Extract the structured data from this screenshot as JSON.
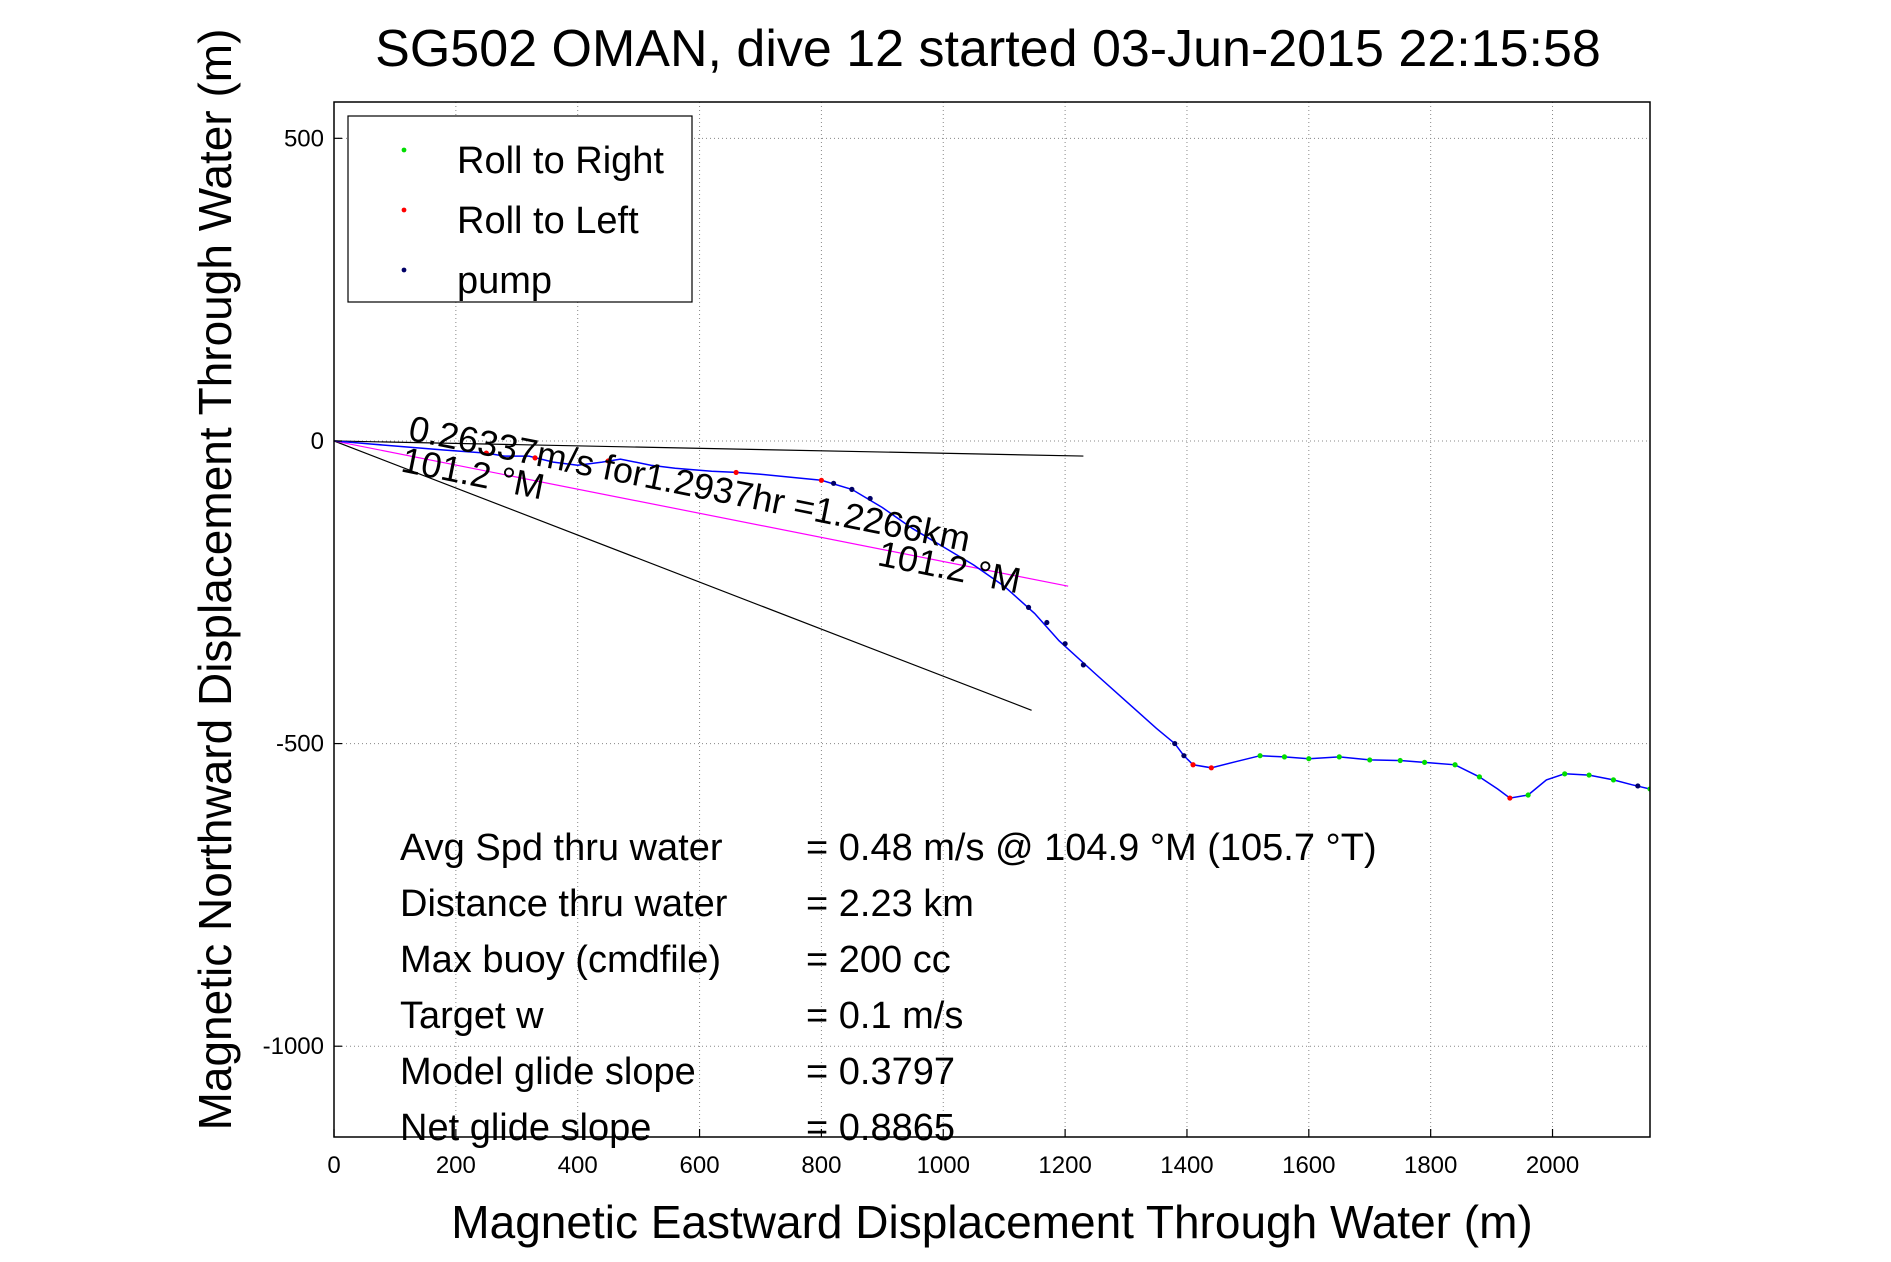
{
  "chart_data": {
    "type": "line",
    "title": "SG502 OMAN, dive 12 started 03-Jun-2015 22:15:58",
    "xlabel": "Magnetic Eastward Displacement Through Water (m)",
    "ylabel": "Magnetic Northward Displacement Through Water (m)",
    "xlim": [
      0,
      2160
    ],
    "ylim": [
      -1150,
      560
    ],
    "xticks": [
      0,
      200,
      400,
      600,
      800,
      1000,
      1200,
      1400,
      1600,
      1800,
      2000
    ],
    "yticks": [
      500,
      0,
      -500,
      -1000
    ],
    "grid": true,
    "legend": {
      "placement": "top-left",
      "entries": [
        {
          "label": "Roll to Right",
          "color": "#00dd00"
        },
        {
          "label": "Roll to Left",
          "color": "#ff0000"
        },
        {
          "label": "pump",
          "color": "#000066"
        }
      ]
    },
    "track": {
      "color": "#0000ff",
      "points": [
        [
          0,
          0
        ],
        [
          60,
          -5
        ],
        [
          120,
          -10
        ],
        [
          180,
          -15
        ],
        [
          250,
          -20
        ],
        [
          280,
          -25
        ],
        [
          320,
          -25
        ],
        [
          360,
          -35
        ],
        [
          400,
          -40
        ],
        [
          440,
          -35
        ],
        [
          470,
          -30
        ],
        [
          520,
          -40
        ],
        [
          560,
          -45
        ],
        [
          620,
          -50
        ],
        [
          660,
          -52
        ],
        [
          700,
          -55
        ],
        [
          750,
          -60
        ],
        [
          800,
          -65
        ],
        [
          850,
          -80
        ],
        [
          900,
          -110
        ],
        [
          950,
          -145
        ],
        [
          1000,
          -175
        ],
        [
          1050,
          -205
        ],
        [
          1100,
          -240
        ],
        [
          1150,
          -285
        ],
        [
          1190,
          -330
        ],
        [
          1250,
          -385
        ],
        [
          1300,
          -430
        ],
        [
          1350,
          -475
        ],
        [
          1380,
          -500
        ],
        [
          1395,
          -520
        ],
        [
          1410,
          -535
        ],
        [
          1440,
          -540
        ],
        [
          1480,
          -530
        ],
        [
          1520,
          -520
        ],
        [
          1560,
          -522
        ],
        [
          1600,
          -525
        ],
        [
          1650,
          -522
        ],
        [
          1700,
          -527
        ],
        [
          1750,
          -528
        ],
        [
          1800,
          -532
        ],
        [
          1840,
          -535
        ],
        [
          1880,
          -555
        ],
        [
          1910,
          -575
        ],
        [
          1930,
          -590
        ],
        [
          1960,
          -585
        ],
        [
          1990,
          -560
        ],
        [
          2020,
          -550
        ],
        [
          2060,
          -552
        ],
        [
          2100,
          -560
        ],
        [
          2130,
          -568
        ],
        [
          2160,
          -575
        ]
      ]
    },
    "markers": {
      "roll_right": [
        [
          1520,
          -520
        ],
        [
          1560,
          -522
        ],
        [
          1600,
          -525
        ],
        [
          1650,
          -522
        ],
        [
          1700,
          -527
        ],
        [
          1750,
          -528
        ],
        [
          1790,
          -531
        ],
        [
          1840,
          -535
        ],
        [
          1880,
          -555
        ],
        [
          1960,
          -585
        ],
        [
          2020,
          -550
        ],
        [
          2060,
          -552
        ],
        [
          2100,
          -560
        ],
        [
          2160,
          -575
        ]
      ],
      "roll_left": [
        [
          250,
          -20
        ],
        [
          330,
          -28
        ],
        [
          450,
          -33
        ],
        [
          660,
          -52
        ],
        [
          800,
          -65
        ],
        [
          1410,
          -535
        ],
        [
          1440,
          -540
        ],
        [
          1930,
          -590
        ]
      ],
      "pump": [
        [
          820,
          -70
        ],
        [
          850,
          -80
        ],
        [
          880,
          -95
        ],
        [
          1140,
          -275
        ],
        [
          1170,
          -300
        ],
        [
          1200,
          -335
        ],
        [
          1230,
          -370
        ],
        [
          1380,
          -500
        ],
        [
          1395,
          -520
        ],
        [
          2140,
          -570
        ]
      ]
    },
    "lines": [
      {
        "name": "current",
        "color": "#000000",
        "points": [
          [
            0,
            0
          ],
          [
            1230,
            -25
          ]
        ]
      },
      {
        "name": "heading",
        "color": "#000000",
        "points": [
          [
            0,
            0
          ],
          [
            1145,
            -445
          ]
        ]
      },
      {
        "name": "average",
        "color": "#ff00ff",
        "points": [
          [
            0,
            0
          ],
          [
            1205,
            -240
          ]
        ]
      }
    ],
    "annotations": [
      {
        "text": "0.26337m/s for1.2937hr =1.2266km",
        "x": 120,
        "y": 2,
        "angle": 11.3
      },
      {
        "text": "101.2 °M",
        "x": 108,
        "y": -50,
        "angle": 11.3
      },
      {
        "text": "101.2 °M",
        "x": 890,
        "y": -205,
        "angle": 11.3
      }
    ],
    "stats": [
      {
        "label": "Avg Spd thru water",
        "value": "=  0.48 m/s @ 104.9 °M (105.7 °T)"
      },
      {
        "label": "Distance thru water",
        "value": "=  2.23 km"
      },
      {
        "label": "Max buoy (cmdfile)",
        "value": "= 200 cc"
      },
      {
        "label": "Target w",
        "value": "= 0.1 m/s"
      },
      {
        "label": "Model glide slope",
        "value": "= 0.3797"
      },
      {
        "label": "Net glide slope",
        "value": "= 0.8865"
      }
    ]
  }
}
